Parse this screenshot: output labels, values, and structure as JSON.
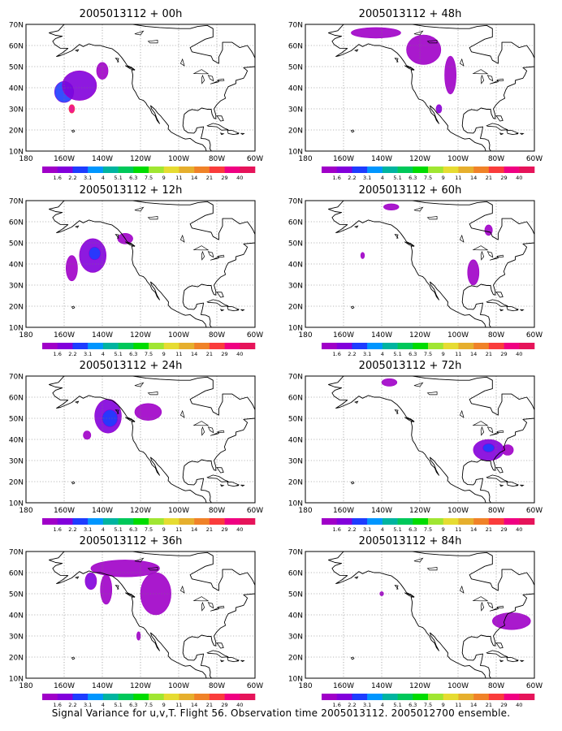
{
  "footer": "Signal Variance for u,v,T. Flight 56. Observation time 2005013112. 2005012700 ensemble.",
  "lat_labels": [
    "70N",
    "60N",
    "50N",
    "40N",
    "30N",
    "20N",
    "10N"
  ],
  "lon_labels": [
    "180",
    "160W",
    "140W",
    "120W",
    "100W",
    "80W",
    "60W"
  ],
  "colorbar": {
    "labels": [
      "1.6",
      "2.2",
      "3.1",
      "4",
      "5.1",
      "6.3",
      "7.5",
      "9",
      "11",
      "14",
      "21",
      "29",
      "40"
    ],
    "colors": [
      "#a000c8",
      "#8200dc",
      "#1e3cff",
      "#0096ff",
      "#00b4a0",
      "#00c85a",
      "#00dc00",
      "#a0e632",
      "#e6dc32",
      "#e6af2d",
      "#f08228",
      "#fa3c3c",
      "#f00082",
      "#e6145a"
    ]
  },
  "panels": [
    {
      "title": "2005013112 + 00h",
      "blobs": [
        {
          "lon": -160,
          "lat": 38,
          "rx": 5,
          "ry": 5,
          "level": 2
        },
        {
          "lon": -152,
          "lat": 41,
          "rx": 9,
          "ry": 7,
          "level": 1
        },
        {
          "lon": -140,
          "lat": 48,
          "rx": 3,
          "ry": 4,
          "level": 0
        },
        {
          "lon": -156,
          "lat": 30,
          "rx": 1.5,
          "ry": 2,
          "level": 12
        }
      ]
    },
    {
      "title": "2005013112 + 48h",
      "blobs": [
        {
          "lon": -143,
          "lat": 66,
          "rx": 13,
          "ry": 2.5,
          "level": 0
        },
        {
          "lon": -118,
          "lat": 58,
          "rx": 9,
          "ry": 7,
          "level": 0
        },
        {
          "lon": -104,
          "lat": 46,
          "rx": 3,
          "ry": 9,
          "level": 0
        },
        {
          "lon": -110,
          "lat": 30,
          "rx": 1.5,
          "ry": 2,
          "level": 1
        }
      ]
    },
    {
      "title": "2005013112 + 12h",
      "blobs": [
        {
          "lon": -145,
          "lat": 44,
          "rx": 7,
          "ry": 8,
          "level": 1
        },
        {
          "lon": -144,
          "lat": 45,
          "rx": 3,
          "ry": 3,
          "level": 2
        },
        {
          "lon": -156,
          "lat": 38,
          "rx": 3,
          "ry": 6,
          "level": 0
        },
        {
          "lon": -128,
          "lat": 52,
          "rx": 4,
          "ry": 2.5,
          "level": 0
        }
      ]
    },
    {
      "title": "2005013112 + 60h",
      "blobs": [
        {
          "lon": -135,
          "lat": 67,
          "rx": 4,
          "ry": 1.5,
          "level": 0
        },
        {
          "lon": -150,
          "lat": 44,
          "rx": 1,
          "ry": 1.5,
          "level": 0
        },
        {
          "lon": -92,
          "lat": 36,
          "rx": 3,
          "ry": 6,
          "level": 0
        },
        {
          "lon": -84,
          "lat": 56,
          "rx": 2,
          "ry": 2.5,
          "level": 0
        }
      ]
    },
    {
      "title": "2005013112 + 24h",
      "blobs": [
        {
          "lon": -137,
          "lat": 51,
          "rx": 7,
          "ry": 8,
          "level": 1
        },
        {
          "lon": -136,
          "lat": 50,
          "rx": 4,
          "ry": 4,
          "level": 2
        },
        {
          "lon": -116,
          "lat": 53,
          "rx": 7,
          "ry": 4,
          "level": 0
        },
        {
          "lon": -148,
          "lat": 42,
          "rx": 2,
          "ry": 2,
          "level": 0
        }
      ]
    },
    {
      "title": "2005013112 + 72h",
      "blobs": [
        {
          "lon": -136,
          "lat": 67,
          "rx": 4,
          "ry": 1.8,
          "level": 0
        },
        {
          "lon": -84,
          "lat": 35,
          "rx": 8,
          "ry": 5,
          "level": 1
        },
        {
          "lon": -84,
          "lat": 36,
          "rx": 3,
          "ry": 2,
          "level": 2
        },
        {
          "lon": -74,
          "lat": 35,
          "rx": 3,
          "ry": 2.5,
          "level": 0
        }
      ]
    },
    {
      "title": "2005013112 + 36h",
      "blobs": [
        {
          "lon": -128,
          "lat": 62,
          "rx": 18,
          "ry": 4,
          "level": 0
        },
        {
          "lon": -138,
          "lat": 52,
          "rx": 3,
          "ry": 7,
          "level": 0
        },
        {
          "lon": -112,
          "lat": 50,
          "rx": 8,
          "ry": 10,
          "level": 0
        },
        {
          "lon": -121,
          "lat": 30,
          "rx": 1,
          "ry": 2,
          "level": 0
        },
        {
          "lon": -146,
          "lat": 56,
          "rx": 3,
          "ry": 4,
          "level": 1
        }
      ]
    },
    {
      "title": "2005013112 + 84h",
      "blobs": [
        {
          "lon": -140,
          "lat": 50,
          "rx": 1,
          "ry": 1,
          "level": 0
        },
        {
          "lon": -72,
          "lat": 37,
          "rx": 10,
          "ry": 4,
          "level": 0
        }
      ]
    }
  ]
}
